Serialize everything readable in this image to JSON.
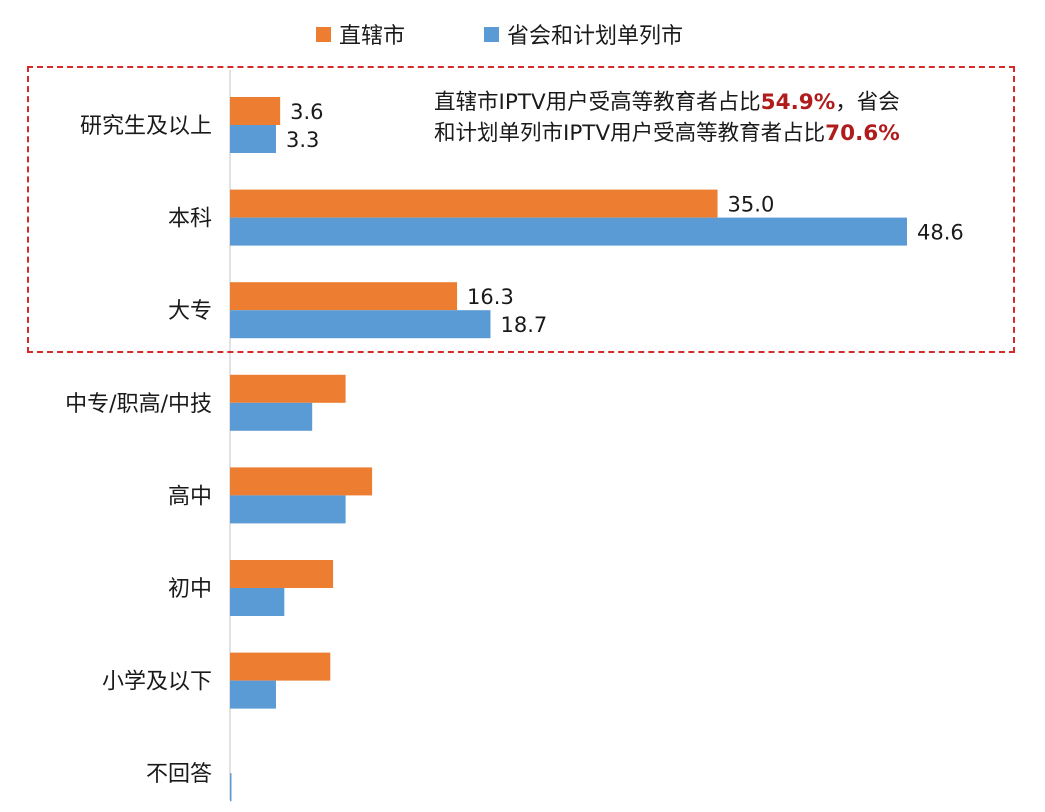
{
  "chart_data": {
    "type": "bar",
    "orientation": "horizontal",
    "categories": [
      "研究生及以上",
      "本科",
      "大专",
      "中专/职高/中技",
      "高中",
      "初中",
      "小学及以下",
      "不回答"
    ],
    "series": [
      {
        "name": "直辖市",
        "color": "#ed7d31",
        "values": [
          3.6,
          35.0,
          16.3,
          8.3,
          10.2,
          7.4,
          7.2,
          0.0
        ],
        "labels_shown": [
          true,
          true,
          true,
          false,
          false,
          false,
          false,
          false
        ]
      },
      {
        "name": "省会和计划单列市",
        "color": "#5b9bd5",
        "values": [
          3.3,
          48.6,
          18.7,
          5.9,
          8.3,
          3.9,
          3.3,
          0.1
        ],
        "labels_shown": [
          true,
          true,
          true,
          false,
          false,
          false,
          false,
          false
        ]
      }
    ],
    "data_labels": {
      "直辖市": [
        "3.6",
        "35.0",
        "16.3"
      ],
      "省会和计划单列市": [
        "3.3",
        "48.6",
        "18.7"
      ]
    },
    "xlim": [
      0,
      50
    ],
    "grid": false,
    "legend_position": "top-center",
    "highlight_categories": [
      "研究生及以上",
      "本科",
      "大专"
    ]
  },
  "annotation": {
    "line1_prefix": "直辖市IPTV用户受高等教育者占比",
    "line1_highlight": "54.9%",
    "line1_suffix": "，省会",
    "line2_prefix": "和计划单列市IPTV用户受高等教育者占比",
    "line2_highlight": "70.6%"
  }
}
